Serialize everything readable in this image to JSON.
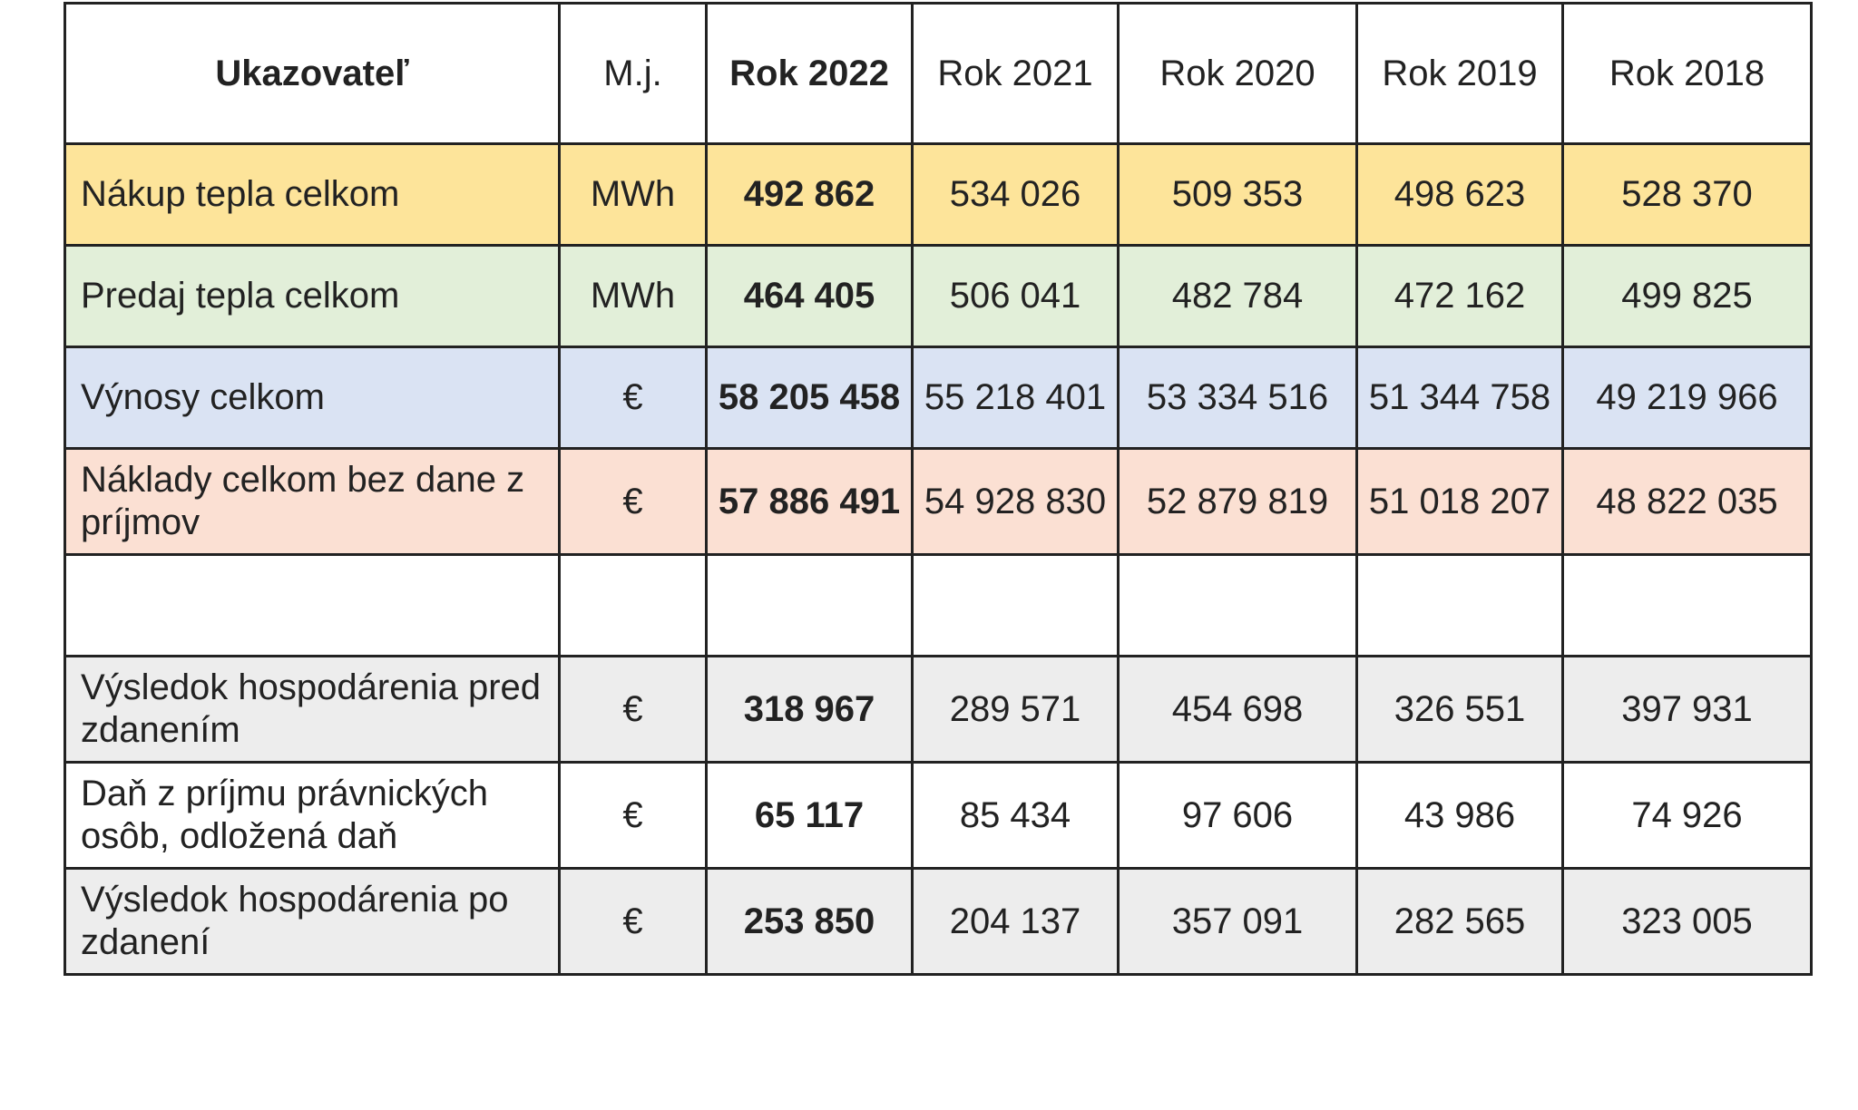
{
  "table": {
    "headers": [
      "Ukazovateľ",
      "M.j.",
      "Rok 2022",
      "Rok 2021",
      "Rok 2020",
      "Rok 2019",
      "Rok 2018"
    ],
    "rows": [
      {
        "label": "Nákup tepla celkom",
        "unit": "MWh",
        "values": [
          "492 862",
          "534 026",
          "509 353",
          "498 623",
          "528 370"
        ]
      },
      {
        "label": "Predaj tepla celkom",
        "unit": "MWh",
        "values": [
          "464 405",
          "506 041",
          "482 784",
          "472 162",
          "499 825"
        ]
      },
      {
        "label": "Výnosy celkom",
        "unit": "€",
        "values": [
          "58 205 458",
          "55 218 401",
          "53 334 516",
          "51 344 758",
          "49 219 966"
        ]
      },
      {
        "label": "Náklady celkom bez dane z príjmov",
        "unit": "€",
        "values": [
          "57 886 491",
          "54 928 830",
          "52 879 819",
          "51 018 207",
          "48 822 035"
        ]
      },
      {
        "label": "",
        "unit": "",
        "values": [
          "",
          "",
          "",
          "",
          ""
        ]
      },
      {
        "label": "Výsledok hospodárenia pred zdanením",
        "unit": "€",
        "values": [
          "318 967",
          "289 571",
          "454 698",
          "326 551",
          "397 931"
        ]
      },
      {
        "label": "Daň z príjmu právnických osôb, odložená daň",
        "unit": "€",
        "values": [
          "65 117",
          "85 434",
          "97 606",
          "43 986",
          "74 926"
        ]
      },
      {
        "label": "Výsledok hospodárenia po  zdanení",
        "unit": "€",
        "values": [
          "253 850",
          "204 137",
          "357 091",
          "282 565",
          "323 005"
        ]
      }
    ]
  },
  "colors": {
    "heat_purchase_row": "#fde49a",
    "heat_sales_row": "#e2efd9",
    "revenue_row": "#dae3f3",
    "costs_row": "#fbe0d3",
    "result_rows": "#ededed",
    "border": "#222222"
  }
}
